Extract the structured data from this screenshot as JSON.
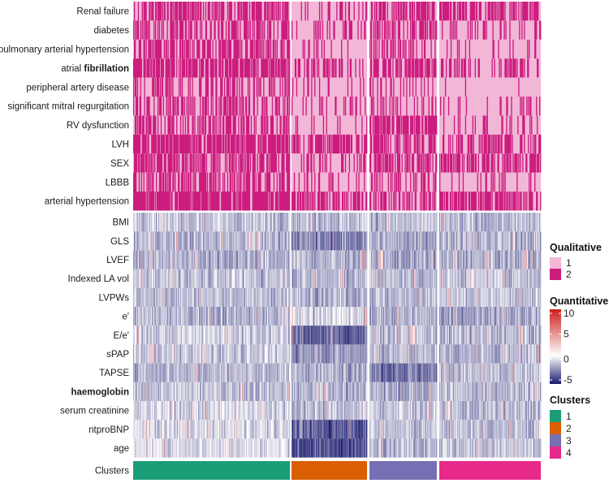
{
  "chart_data": {
    "type": "heatmap",
    "title": "",
    "qualitative_rows": [
      {
        "label": "Renal failure",
        "high_frac": [
          0.62,
          0.25,
          0.65,
          0.55
        ]
      },
      {
        "label": "diabetes",
        "high_frac": [
          0.55,
          0.15,
          0.45,
          0.3
        ]
      },
      {
        "label": "pulmonary arterial hypertension",
        "high_frac": [
          0.55,
          0.05,
          0.4,
          0.15
        ]
      },
      {
        "label": "atrial fibrillation",
        "high_frac": [
          0.75,
          0.45,
          0.6,
          0.35
        ]
      },
      {
        "label": "peripheral artery disease",
        "high_frac": [
          0.4,
          0.1,
          0.25,
          0.05
        ]
      },
      {
        "label": "significant mitral regurgitation",
        "high_frac": [
          0.5,
          0.25,
          0.3,
          0.15
        ]
      },
      {
        "label": "RV dysfunction",
        "high_frac": [
          0.45,
          0.1,
          0.75,
          0.2
        ]
      },
      {
        "label": "LVH",
        "high_frac": [
          0.8,
          0.55,
          0.5,
          0.55
        ]
      },
      {
        "label": "SEX",
        "high_frac": [
          0.6,
          0.25,
          0.55,
          0.6
        ]
      },
      {
        "label": "LBBB",
        "high_frac": [
          0.55,
          0.25,
          0.35,
          0.15
        ]
      },
      {
        "label": "arterial hypertension",
        "high_frac": [
          0.85,
          0.55,
          0.45,
          0.6
        ]
      }
    ],
    "quantitative_rows": [
      {
        "label": "BMI",
        "mean": [
          -1.2,
          -1.3,
          -1.4,
          -1.6
        ]
      },
      {
        "label": "GLS",
        "mean": [
          -1.5,
          -2.6,
          -1.8,
          -1.6
        ]
      },
      {
        "label": "LVEF",
        "mean": [
          -1.7,
          -1.6,
          -1.9,
          -1.7
        ]
      },
      {
        "label": "Indexed LA vol",
        "mean": [
          -1.3,
          -1.6,
          -1.5,
          -1.2
        ]
      },
      {
        "label": "LVPWs",
        "mean": [
          -1.4,
          -1.5,
          -1.5,
          -1.3
        ]
      },
      {
        "label": "e'",
        "mean": [
          -1.6,
          -0.8,
          -1.7,
          -1.9
        ]
      },
      {
        "label": "E/e'",
        "mean": [
          -1.0,
          -3.4,
          -1.3,
          -1.5
        ]
      },
      {
        "label": "sPAP",
        "mean": [
          -1.2,
          -2.2,
          -1.6,
          -1.6
        ]
      },
      {
        "label": "TAPSE",
        "mean": [
          -1.5,
          -1.6,
          -2.8,
          -1.5
        ]
      },
      {
        "label": "haemoglobin",
        "mean": [
          -1.3,
          -1.6,
          -1.8,
          -1.4
        ]
      },
      {
        "label": "serum creatinine",
        "mean": [
          -0.9,
          -1.4,
          -1.2,
          -1.5
        ]
      },
      {
        "label": "ntproBNP",
        "mean": [
          -0.8,
          -3.5,
          -1.4,
          -1.4
        ]
      },
      {
        "label": "age",
        "mean": [
          -0.7,
          -3.8,
          -1.3,
          -1.3
        ]
      }
    ],
    "bold_labels": [
      "fibrillation",
      "haemoglobin"
    ],
    "clusters_row_label": "Clusters",
    "clusters": [
      {
        "id": "1",
        "n_columns": 200,
        "color": "#1b9e77"
      },
      {
        "id": "2",
        "n_columns": 96,
        "color": "#d95f02"
      },
      {
        "id": "3",
        "n_columns": 88,
        "color": "#7570b3"
      },
      {
        "id": "4",
        "n_columns": 126,
        "color": "#e7298a"
      }
    ],
    "qualitative_scale": {
      "low_value": "1",
      "high_value": "2",
      "low_color": "#f2b6d7",
      "high_color": "#cc1c7e"
    },
    "quantitative_scale": {
      "min": -5,
      "mid": 0,
      "max": 10,
      "ticks": [
        "10",
        "5",
        "0",
        "-5"
      ],
      "low_color": "#1a1a6e",
      "mid_color": "#ffffff",
      "high_color": "#cc1f1f"
    },
    "legend": {
      "qualitative_title": "Qualitative",
      "quantitative_title": "Quantitative",
      "clusters_title": "Clusters",
      "qualitative_items": [
        "1",
        "2"
      ],
      "cluster_items": [
        "1",
        "2",
        "3",
        "4"
      ],
      "position": "right"
    }
  }
}
